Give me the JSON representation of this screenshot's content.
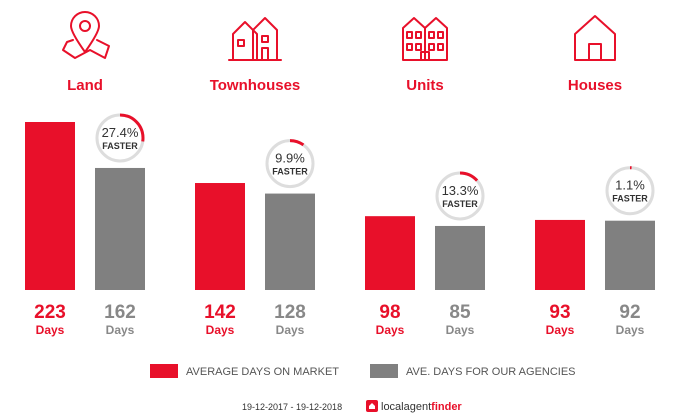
{
  "colors": {
    "red": "#e8102a",
    "grey": "#808080",
    "text_grey": "#888888",
    "ring_grey": "#dddddd"
  },
  "chart_data": {
    "type": "bar",
    "categories": [
      "Land",
      "Townhouses",
      "Units",
      "Houses"
    ],
    "category_icons": [
      "map-pin-icon",
      "townhouse-icon",
      "units-building-icon",
      "house-icon"
    ],
    "series": [
      {
        "name": "AVERAGE DAYS ON MARKET",
        "values": [
          223,
          142,
          98,
          93
        ],
        "color": "#e8102a"
      },
      {
        "name": "AVE. DAYS FOR OUR AGENCIES",
        "values": [
          162,
          128,
          85,
          92
        ],
        "color": "#808080"
      }
    ],
    "unit_label": "Days",
    "faster_percent": [
      27.4,
      9.9,
      13.3,
      1.1
    ],
    "faster_labels": [
      "27.4%",
      "9.9%",
      "13.3%",
      "1.1%"
    ],
    "faster_word": "FASTER",
    "ylim": [
      0,
      223
    ],
    "legend_position": "bottom"
  },
  "footer": {
    "date_range": "19-12-2017 - 19-12-2018",
    "brand_local": "localagent",
    "brand_finder": "finder"
  }
}
